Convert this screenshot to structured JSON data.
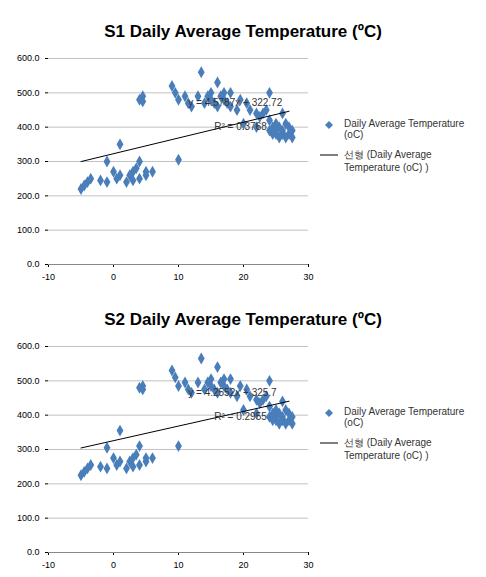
{
  "chart_data": [
    {
      "type": "scatter",
      "title": "S1 Daily Average Temperature (ºC)",
      "xlim": [
        -10,
        30
      ],
      "xticks": [
        -10,
        0,
        10,
        20,
        30
      ],
      "ylim": [
        0,
        600
      ],
      "yticks": [
        {
          "value": 0,
          "label": "0.0"
        },
        {
          "value": 100,
          "label": "100.0"
        },
        {
          "value": 200,
          "label": "200.0"
        },
        {
          "value": 300,
          "label": "300.0"
        },
        {
          "value": 400,
          "label": "400.0"
        },
        {
          "value": 500,
          "label": "500.0"
        },
        {
          "value": 600,
          "label": "600.0"
        }
      ],
      "grid": "y",
      "legend": "right",
      "series": [
        {
          "name": "Daily Average Temperature (oC)",
          "type": "scatter",
          "marker": "diamond",
          "color": "#4a7ebb",
          "x": [
            -5,
            -4.5,
            -4,
            -3.5,
            -2,
            -1,
            -1,
            0,
            0.5,
            1,
            1,
            2,
            2.5,
            3,
            3,
            3.5,
            4,
            4,
            4.5,
            4.5,
            4,
            5,
            5,
            6,
            10,
            9,
            9.5,
            10,
            11,
            11.5,
            12,
            13,
            13.5,
            14,
            14.5,
            15,
            15,
            15.5,
            16,
            16,
            16.5,
            17,
            17,
            17.5,
            18,
            18,
            19,
            19.5,
            20,
            20.5,
            21,
            22,
            22,
            22.5,
            23,
            23.5,
            24,
            24,
            24.5,
            24.5,
            25,
            25,
            25.5,
            25.5,
            26,
            26,
            26,
            26.5,
            26.5,
            27,
            27,
            27.5,
            27.5,
            24,
            25
          ],
          "values": [
            220,
            230,
            240,
            250,
            245,
            300,
            240,
            270,
            250,
            350,
            260,
            240,
            260,
            270,
            245,
            280,
            250,
            480,
            475,
            490,
            300,
            270,
            260,
            270,
            305,
            520,
            500,
            480,
            490,
            470,
            460,
            490,
            560,
            470,
            490,
            500,
            480,
            470,
            530,
            460,
            490,
            500,
            480,
            470,
            500,
            460,
            450,
            480,
            410,
            470,
            450,
            400,
            440,
            430,
            440,
            450,
            500,
            420,
            380,
            400,
            390,
            410,
            370,
            400,
            380,
            390,
            440,
            410,
            370,
            380,
            400,
            390,
            370,
            390,
            380
          ]
        },
        {
          "name": "선형 (Daily Average Temperature (oC) )",
          "type": "line",
          "color": "#000000",
          "x": [
            -5,
            27
          ],
          "values": [
            299.8,
            446.3
          ]
        }
      ],
      "annotations": [
        {
          "text": "y = 4.5787x + 322.72",
          "x": 11.5,
          "y": 470
        },
        {
          "text": "R² = 0.3768",
          "x": 15.5,
          "y": 400
        }
      ]
    },
    {
      "type": "scatter",
      "title": "S2 Daily Average Temperature (ºC)",
      "xlim": [
        -10,
        30
      ],
      "xticks": [
        -10,
        0,
        10,
        20,
        30
      ],
      "ylim": [
        0,
        600
      ],
      "yticks": [
        {
          "value": 0,
          "label": "0.0"
        },
        {
          "value": 100,
          "label": "100.0"
        },
        {
          "value": 200,
          "label": "200.0"
        },
        {
          "value": 300,
          "label": "300.0"
        },
        {
          "value": 400,
          "label": "400.0"
        },
        {
          "value": 500,
          "label": "500.0"
        },
        {
          "value": 600,
          "label": "600.0"
        }
      ],
      "grid": "y",
      "legend": "right",
      "series": [
        {
          "name": "Daily Average Temperature (oC)",
          "type": "scatter",
          "marker": "diamond",
          "color": "#4a7ebb",
          "x": [
            -5,
            -4.5,
            -4,
            -3.5,
            -2,
            -1,
            -1,
            0,
            0.5,
            1,
            1,
            2,
            2.5,
            3,
            3,
            3.5,
            4,
            4,
            4.5,
            4.5,
            4,
            5,
            5,
            6,
            10,
            9,
            9.5,
            10,
            11,
            11.5,
            12,
            13,
            13.5,
            14,
            14.5,
            15,
            15,
            15.5,
            16,
            16,
            16.5,
            17,
            17,
            17.5,
            18,
            18,
            19,
            19.5,
            20,
            20.5,
            21,
            22,
            22,
            22.5,
            23,
            23.5,
            24,
            24,
            24.5,
            24.5,
            25,
            25,
            25.5,
            25.5,
            26,
            26,
            26,
            26.5,
            26.5,
            27,
            27,
            27.5,
            27.5,
            24,
            25
          ],
          "values": [
            225,
            235,
            245,
            255,
            250,
            305,
            245,
            275,
            255,
            355,
            265,
            245,
            265,
            275,
            250,
            285,
            255,
            480,
            475,
            485,
            310,
            275,
            265,
            275,
            310,
            530,
            510,
            485,
            495,
            475,
            465,
            495,
            565,
            475,
            495,
            505,
            485,
            475,
            540,
            465,
            495,
            505,
            485,
            475,
            505,
            465,
            455,
            485,
            415,
            475,
            455,
            405,
            445,
            435,
            445,
            455,
            500,
            425,
            385,
            405,
            395,
            415,
            375,
            405,
            385,
            395,
            440,
            415,
            375,
            385,
            405,
            395,
            375,
            395,
            385
          ]
        },
        {
          "name": "선형 (Daily Average Temperature (oC) )",
          "type": "line",
          "color": "#000000",
          "x": [
            -5,
            27
          ],
          "values": [
            304.4,
            440.6
          ]
        }
      ],
      "annotations": [
        {
          "text": "y = 4.2552x + 325.7",
          "x": 11.5,
          "y": 465
        },
        {
          "text": "R² = 0.2955",
          "x": 15.5,
          "y": 395
        }
      ]
    }
  ]
}
